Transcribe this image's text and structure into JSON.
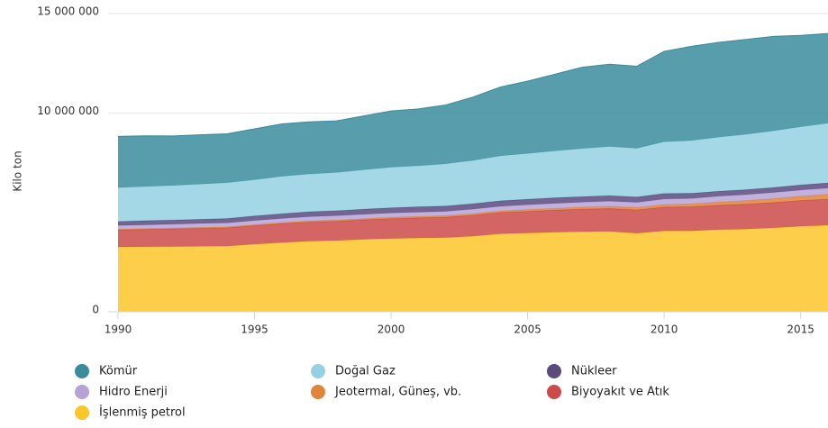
{
  "chart_data": {
    "type": "stacked-area",
    "y_label": "Kilo ton",
    "x": [
      1990,
      1991,
      1992,
      1993,
      1994,
      1995,
      1996,
      1997,
      1998,
      1999,
      2000,
      2001,
      2002,
      2003,
      2004,
      2005,
      2006,
      2007,
      2008,
      2009,
      2010,
      2011,
      2012,
      2013,
      2014,
      2015,
      2016
    ],
    "xlim": [
      1990,
      2016
    ],
    "xticks": [
      1990,
      1995,
      2000,
      2005,
      2010,
      2015
    ],
    "ylim": [
      0,
      15000000
    ],
    "yticks": [
      0,
      {
        "value": 10000000,
        "label": "10 000 000"
      },
      {
        "value": 15000000,
        "label": "15 000 000"
      }
    ],
    "grid": true,
    "series": [
      {
        "name": "İşlenmiş petrol",
        "color": "#fcc52a",
        "values": [
          3260000,
          3270000,
          3280000,
          3290000,
          3300000,
          3400000,
          3480000,
          3550000,
          3580000,
          3640000,
          3680000,
          3710000,
          3730000,
          3800000,
          3920000,
          3960000,
          4000000,
          4030000,
          4040000,
          3950000,
          4070000,
          4070000,
          4130000,
          4160000,
          4220000,
          4300000,
          4350000
        ]
      },
      {
        "name": "Biyoyakıt ve Atık",
        "color": "#cc4a4a",
        "values": [
          850000,
          870000,
          890000,
          900000,
          920000,
          930000,
          950000,
          960000,
          970000,
          980000,
          1000000,
          1010000,
          1030000,
          1050000,
          1070000,
          1090000,
          1110000,
          1130000,
          1150000,
          1170000,
          1190000,
          1210000,
          1230000,
          1250000,
          1270000,
          1290000,
          1310000
        ]
      },
      {
        "name": "Jeotermal, Güneş, vb.",
        "color": "#e0843a",
        "values": [
          40000,
          40000,
          40000,
          50000,
          50000,
          50000,
          50000,
          60000,
          60000,
          60000,
          70000,
          70000,
          70000,
          80000,
          80000,
          90000,
          90000,
          100000,
          110000,
          120000,
          130000,
          140000,
          160000,
          180000,
          200000,
          220000,
          240000
        ]
      },
      {
        "name": "Hidro Enerji",
        "color": "#b6a3d6",
        "values": [
          190000,
          190000,
          190000,
          200000,
          200000,
          210000,
          210000,
          210000,
          220000,
          220000,
          220000,
          220000,
          220000,
          230000,
          230000,
          240000,
          250000,
          250000,
          260000,
          260000,
          280000,
          280000,
          290000,
          300000,
          310000,
          310000,
          320000
        ]
      },
      {
        "name": "Nükleer",
        "color": "#5a4a7f",
        "values": [
          200000,
          210000,
          210000,
          210000,
          220000,
          230000,
          240000,
          250000,
          250000,
          260000,
          260000,
          270000,
          270000,
          270000,
          280000,
          280000,
          280000,
          280000,
          280000,
          270000,
          280000,
          260000,
          250000,
          250000,
          250000,
          260000,
          260000
        ]
      },
      {
        "name": "Doğal Gaz",
        "color": "#95d1e2",
        "values": [
          1700000,
          1720000,
          1740000,
          1770000,
          1800000,
          1820000,
          1880000,
          1900000,
          1920000,
          1980000,
          2040000,
          2060000,
          2120000,
          2180000,
          2260000,
          2300000,
          2360000,
          2420000,
          2470000,
          2450000,
          2600000,
          2650000,
          2720000,
          2780000,
          2850000,
          2920000,
          3000000
        ]
      },
      {
        "name": "Kömür",
        "color": "#3a8c9c",
        "values": [
          2580000,
          2550000,
          2490000,
          2480000,
          2460000,
          2560000,
          2640000,
          2620000,
          2600000,
          2710000,
          2830000,
          2860000,
          2960000,
          3190000,
          3460000,
          3640000,
          3860000,
          4090000,
          4140000,
          4130000,
          4550000,
          4740000,
          4770000,
          4780000,
          4750000,
          4600000,
          4520000
        ]
      }
    ]
  }
}
